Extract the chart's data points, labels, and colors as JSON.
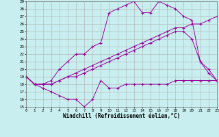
{
  "xlabel": "Windchill (Refroidissement éolien,°C)",
  "bg_color": "#c8eef0",
  "line_color": "#990099",
  "grid_color": "#b0b0b0",
  "xmin": 0,
  "xmax": 23,
  "ymin": 15,
  "ymax": 29,
  "series1_x": [
    0,
    1,
    2,
    3,
    4,
    5,
    6,
    7,
    8,
    9,
    10,
    11,
    12,
    13,
    14,
    15,
    16,
    17,
    18,
    19,
    20,
    21,
    22,
    23
  ],
  "series1_y": [
    19,
    18,
    17.5,
    17,
    16.5,
    16,
    16,
    15,
    16,
    18.5,
    17.5,
    17.5,
    18,
    18,
    18,
    18,
    18,
    18,
    18.5,
    18.5,
    18.5,
    18.5,
    18.5,
    18.5
  ],
  "series2_x": [
    0,
    1,
    2,
    3,
    4,
    5,
    6,
    7,
    8,
    9,
    10,
    11,
    12,
    13,
    14,
    15,
    16,
    17,
    18,
    19,
    20,
    21,
    22,
    23
  ],
  "series2_y": [
    19,
    18,
    18,
    18,
    18.5,
    19,
    19,
    19.5,
    20,
    20.5,
    21,
    21.5,
    22,
    22.5,
    23,
    23.5,
    24,
    24.5,
    25,
    25,
    24,
    21,
    19.5,
    18.5
  ],
  "series3_x": [
    0,
    1,
    2,
    3,
    4,
    5,
    6,
    7,
    8,
    9,
    10,
    11,
    12,
    13,
    14,
    15,
    16,
    17,
    18,
    19,
    20,
    21,
    22,
    23
  ],
  "series3_y": [
    19,
    18,
    18,
    18,
    18.5,
    19,
    19.5,
    20,
    20.5,
    21,
    21.5,
    22,
    22.5,
    23,
    23.5,
    24,
    24.5,
    25,
    25.5,
    25.5,
    26,
    26,
    26.5,
    27
  ],
  "series4_x": [
    0,
    1,
    2,
    3,
    4,
    5,
    6,
    7,
    8,
    9,
    10,
    11,
    12,
    13,
    14,
    15,
    16,
    17,
    18,
    19,
    20,
    21,
    22,
    23
  ],
  "series4_y": [
    19,
    18,
    18,
    18.5,
    20,
    21,
    22,
    22,
    23,
    23.5,
    27.5,
    28,
    28.5,
    29,
    27.5,
    27.5,
    29,
    28.5,
    28,
    27,
    26.5,
    21,
    20,
    18.5
  ]
}
